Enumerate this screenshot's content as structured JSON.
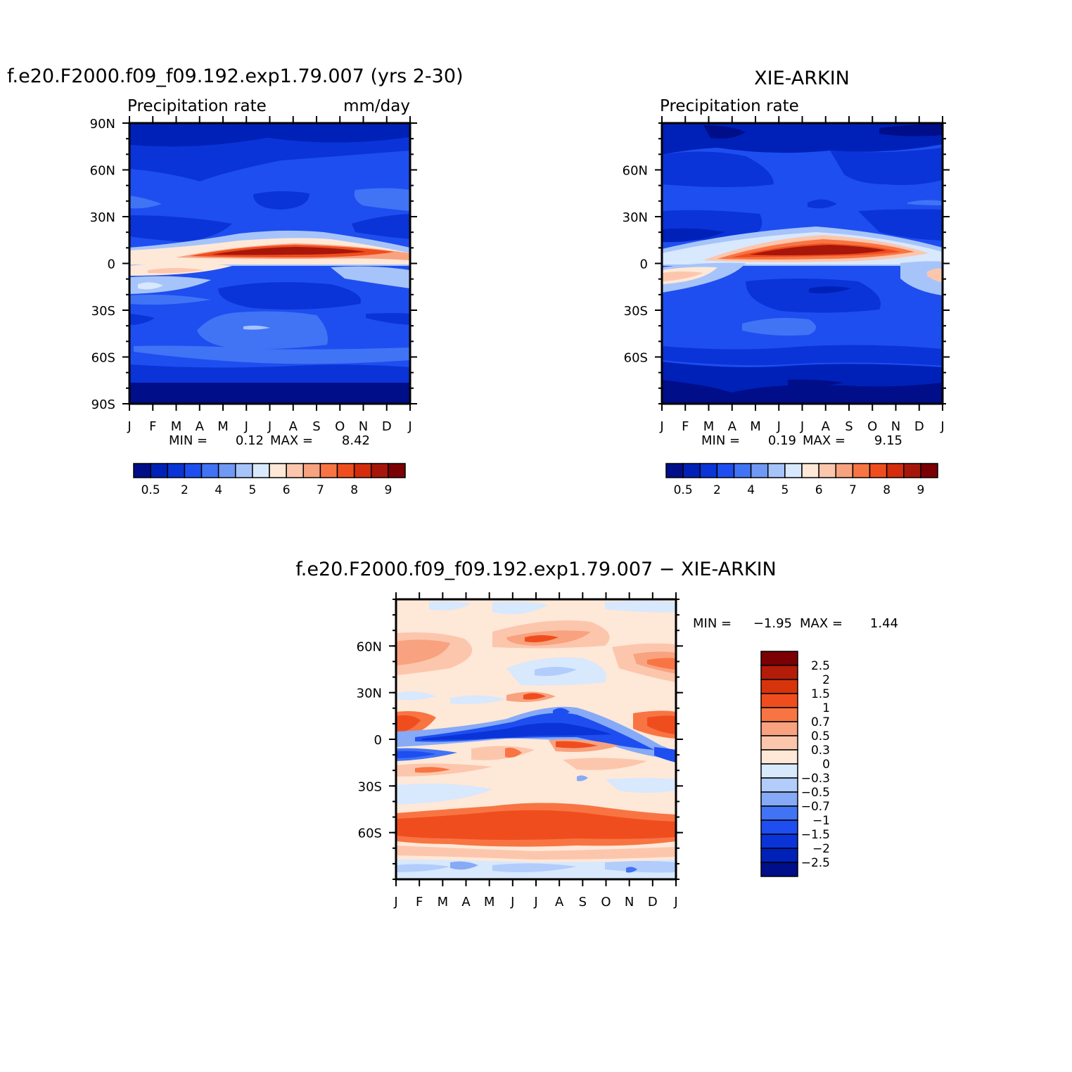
{
  "chart_data": [
    {
      "type": "heatmap",
      "title": "f.e20.F2000.f09_f09.192.exp1.79.007 (yrs 2-30)",
      "subtitle_left": "Precipitation  rate",
      "subtitle_right": "mm/day",
      "x": [
        "J",
        "F",
        "M",
        "A",
        "M",
        "J",
        "J",
        "A",
        "S",
        "O",
        "N",
        "D",
        "J"
      ],
      "y_ticks": [
        "90N",
        "60N",
        "30N",
        "0",
        "30S",
        "60S",
        "90S"
      ],
      "ylim": [
        -90,
        90
      ],
      "min_label": "MIN =",
      "min_value": "0.12",
      "max_label": "MAX =",
      "max_value": "8.42",
      "legend_labels": [
        "0.5",
        "2",
        "4",
        "5",
        "6",
        "7",
        "8",
        "9"
      ],
      "legend_levels": [
        0.5,
        1,
        2,
        3,
        4,
        4.5,
        5,
        5.5,
        6,
        6.5,
        7,
        7.5,
        8,
        8.5,
        9
      ],
      "legend_colors": [
        "#000e8a",
        "#0021b8",
        "#0a34d8",
        "#1e4ef0",
        "#4173f5",
        "#7098f5",
        "#a6c4fa",
        "#d8e8fd",
        "#fee8d8",
        "#fcc6ad",
        "#f8a27f",
        "#f87543",
        "#f04d1f",
        "#d42c0d",
        "#a7160a",
        "#7b0004"
      ]
    },
    {
      "type": "heatmap",
      "title": "XIE-ARKIN",
      "subtitle_left": "Precipitation  rate",
      "x": [
        "J",
        "F",
        "M",
        "A",
        "M",
        "J",
        "J",
        "A",
        "S",
        "O",
        "N",
        "D",
        "J"
      ],
      "y_ticks": [
        "60N",
        "30N",
        "0",
        "30S",
        "60S"
      ],
      "ylim": [
        -90,
        90
      ],
      "min_label": "MIN =",
      "min_value": "0.19",
      "max_label": "MAX =",
      "max_value": "9.15",
      "legend_labels": [
        "0.5",
        "2",
        "4",
        "5",
        "6",
        "7",
        "8",
        "9"
      ],
      "legend_levels": [
        0.5,
        1,
        2,
        3,
        4,
        4.5,
        5,
        5.5,
        6,
        6.5,
        7,
        7.5,
        8,
        8.5,
        9
      ],
      "legend_colors": [
        "#000e8a",
        "#0021b8",
        "#0a34d8",
        "#1e4ef0",
        "#4173f5",
        "#7098f5",
        "#a6c4fa",
        "#d8e8fd",
        "#fee8d8",
        "#fcc6ad",
        "#f8a27f",
        "#f87543",
        "#f04d1f",
        "#d42c0d",
        "#a7160a",
        "#7b0004"
      ]
    },
    {
      "type": "heatmap",
      "title": "f.e20.F2000.f09_f09.192.exp1.79.007 − XIE-ARKIN",
      "x": [
        "J",
        "F",
        "M",
        "A",
        "M",
        "J",
        "J",
        "A",
        "S",
        "O",
        "N",
        "D",
        "J"
      ],
      "y_ticks": [
        "60N",
        "30N",
        "0",
        "30S",
        "60S"
      ],
      "ylim": [
        -90,
        90
      ],
      "min_label": "MIN =",
      "min_value": "−1.95",
      "max_label": "MAX =",
      "max_value": "1.44",
      "legend_labels": [
        "2.5",
        "2",
        "1.5",
        "1",
        "0.7",
        "0.5",
        "0.3",
        "0",
        "−0.3",
        "−0.5",
        "−0.7",
        "−1",
        "−1.5",
        "−2",
        "−2.5"
      ],
      "legend_colors": [
        "#7b0004",
        "#b41c0a",
        "#d8340c",
        "#f04d1f",
        "#f87543",
        "#f8a27f",
        "#fcc6ad",
        "#fee8d8",
        "#d8e8fd",
        "#b2cdfb",
        "#86aaf6",
        "#4173f5",
        "#1e4ef0",
        "#0a34d8",
        "#0021b8",
        "#000e8a"
      ]
    }
  ]
}
